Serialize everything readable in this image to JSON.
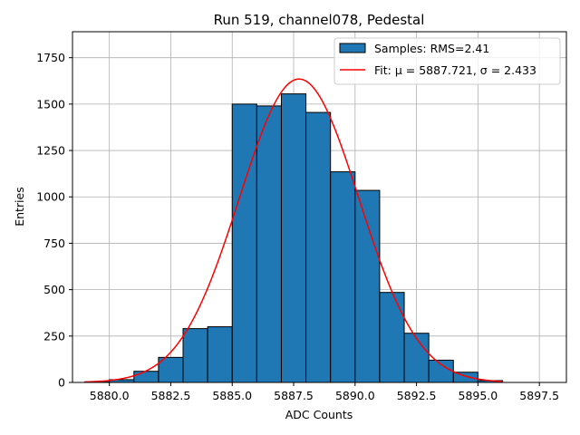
{
  "chart_data": {
    "type": "bar",
    "title": "Run 519, channel078, Pedestal",
    "xlabel": "ADC Counts",
    "ylabel": "Entries",
    "xlim": [
      5878.5,
      5898.6
    ],
    "ylim": [
      0,
      1890
    ],
    "grid": true,
    "legend_position": "top-right",
    "xticks": [
      5880.0,
      5882.5,
      5885.0,
      5887.5,
      5890.0,
      5892.5,
      5895.0,
      5897.5
    ],
    "xtick_labels": [
      "5880.0",
      "5882.5",
      "5885.0",
      "5887.5",
      "5890.0",
      "5892.5",
      "5895.0",
      "5897.5"
    ],
    "yticks": [
      0,
      250,
      500,
      750,
      1000,
      1250,
      1500,
      1750
    ],
    "ytick_labels": [
      "0",
      "250",
      "500",
      "750",
      "1000",
      "1250",
      "1500",
      "1750"
    ],
    "bin_edges": [
      5879,
      5880,
      5881,
      5882,
      5883,
      5884,
      5885,
      5886,
      5887,
      5888,
      5889,
      5890,
      5891,
      5892,
      5893,
      5894,
      5895,
      5896,
      5897
    ],
    "series": [
      {
        "name": "Samples: RMS=2.41",
        "type": "histogram",
        "color": "#1f77b4",
        "edgecolor": "#000000",
        "values": [
          3,
          15,
          60,
          135,
          290,
          300,
          1500,
          1490,
          1555,
          1455,
          1135,
          1035,
          485,
          265,
          120,
          55,
          10,
          0
        ]
      },
      {
        "name": "Fit: μ = 5887.721, σ = 2.433",
        "type": "line",
        "color": "#ff0000",
        "mu": 5887.721,
        "sigma": 2.433,
        "amplitude": 1635,
        "x_range": [
          5879,
          5896
        ]
      }
    ]
  }
}
